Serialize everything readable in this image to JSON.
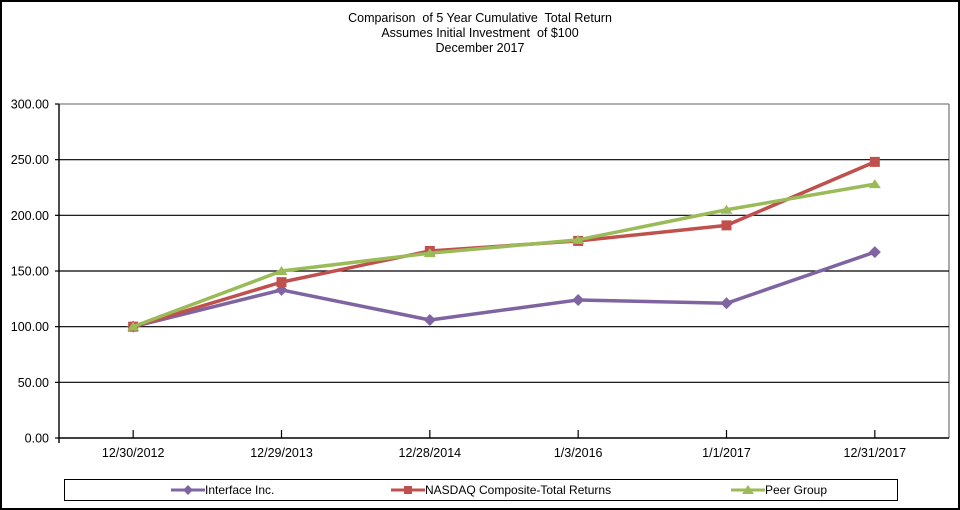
{
  "title": {
    "line1": "Comparison  of 5 Year Cumulative  Total Return",
    "line2": "Assumes Initial Investment  of $100",
    "line3": "December 2017"
  },
  "chart_data": {
    "type": "line",
    "title": "Comparison of 5 Year Cumulative Total Return",
    "subtitle": "Assumes Initial Investment of $100",
    "date_label": "December 2017",
    "categories": [
      "12/30/2012",
      "12/29/2013",
      "12/28/2014",
      "1/3/2016",
      "1/1/2017",
      "12/31/2017"
    ],
    "series": [
      {
        "name": "Interface Inc.",
        "marker": "diamond",
        "color": "#8064A2",
        "values": [
          100,
          133,
          106,
          124,
          121,
          167
        ]
      },
      {
        "name": "NASDAQ Composite-Total Returns",
        "marker": "square",
        "color": "#C0504D",
        "values": [
          100,
          140,
          168,
          177,
          191,
          248
        ]
      },
      {
        "name": "Peer Group",
        "marker": "triangle",
        "color": "#9BBB59",
        "values": [
          100,
          150,
          166,
          178,
          205,
          228
        ]
      }
    ],
    "ylim": [
      0,
      300
    ],
    "ytick_step": 50,
    "ytick_labels": [
      "300.00",
      "250.00",
      "200.00",
      "150.00",
      "100.00",
      "50.00",
      "0.00"
    ],
    "grid": "horizontal-only",
    "legend_position": "bottom",
    "colors": {
      "axis": "#000000",
      "gridline": "#000000",
      "plot_border": "#808080",
      "background": "#FFFFFF"
    }
  }
}
